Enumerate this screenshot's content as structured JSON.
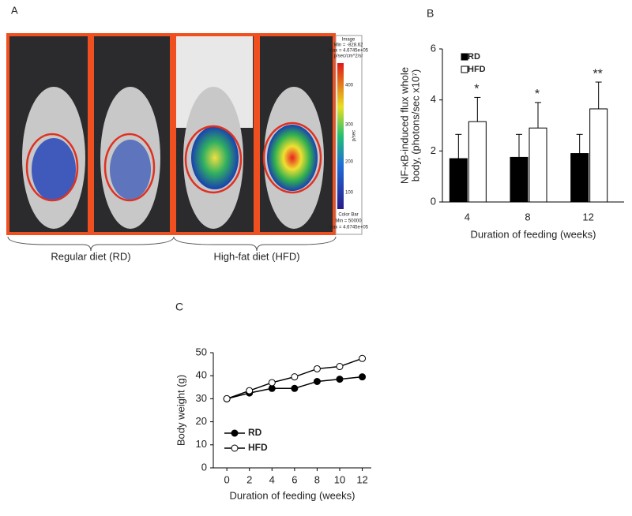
{
  "panel_a": {
    "label": "A",
    "groups": [
      "Regular diet (RD)",
      "High-fat diet (HFD)"
    ],
    "colorbar": {
      "image_title": "Image",
      "image_min": "Min = -828.62",
      "image_max": "Max = 4.6745e+05",
      "image_unit": "p/sec/cm^2/sr",
      "bar_title": "Color Bar",
      "bar_min": "Min = 50000",
      "bar_max": "Max = 4.6745e+05",
      "axis_label": "p/sec",
      "ticks": [
        400,
        300,
        200,
        100
      ]
    }
  },
  "chart_data": [
    {
      "type": "bar",
      "panel_label": "B",
      "categories": [
        "4",
        "8",
        "12"
      ],
      "y_label": [
        "NF-κB-induced flux whole",
        "body, (photons/sec x10⁷)"
      ],
      "x_label": "Duration of feeding (weeks)",
      "ylim": [
        0,
        6
      ],
      "yticks": [
        0,
        2,
        4,
        6
      ],
      "legend": "top-left",
      "series": [
        {
          "name": "RD",
          "color": "#000000",
          "values": [
            1.7,
            1.75,
            1.9
          ],
          "errors": [
            0.95,
            0.9,
            0.75
          ]
        },
        {
          "name": "HFD",
          "color": "#ffffff",
          "values": [
            3.15,
            2.9,
            3.65
          ],
          "errors": [
            0.95,
            1.0,
            1.05
          ]
        }
      ],
      "annotations": [
        "*",
        "*",
        "**"
      ]
    },
    {
      "type": "line",
      "panel_label": "C",
      "x": [
        0,
        2,
        4,
        6,
        8,
        10,
        12
      ],
      "y_label": "Body weight (g)",
      "x_label": "Duration of feeding (weeks)",
      "xlim": [
        -1.2,
        12.8
      ],
      "xticks": [
        0,
        2,
        4,
        6,
        8,
        10,
        12
      ],
      "ylim": [
        0,
        50
      ],
      "yticks": [
        0,
        10,
        20,
        30,
        40,
        50
      ],
      "legend": "bottom-left",
      "series": [
        {
          "name": "RD",
          "color": "#000000",
          "values": [
            30,
            32.5,
            34.5,
            34.5,
            37.5,
            38.5,
            39.5
          ]
        },
        {
          "name": "HFD",
          "color": "#ffffff",
          "values": [
            30,
            33.5,
            37,
            39.5,
            43,
            44,
            47.5
          ]
        }
      ]
    }
  ]
}
